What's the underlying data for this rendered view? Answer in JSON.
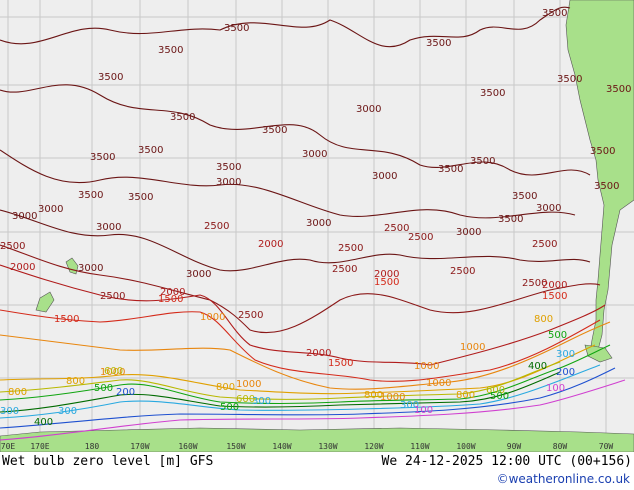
{
  "map": {
    "longitude_ticks": [
      "70E",
      "170E",
      "180",
      "170W",
      "160W",
      "150W",
      "140W",
      "130W",
      "120W",
      "110W",
      "100W",
      "90W",
      "80W",
      "70W"
    ],
    "contour_labels": {
      "c3500": "3500",
      "c3000": "3000",
      "c2500": "2500",
      "c2000": "2000",
      "c1500": "1500",
      "c1000": "1000",
      "c800": "800",
      "c600": "600",
      "c500": "500",
      "c400": "400",
      "c300": "300",
      "c200": "200",
      "c100": "100"
    },
    "colors": {
      "ocean": "#eeeeee",
      "land": "#a8e08a",
      "grid": "#c8c8c8",
      "c3500": "#6b1515",
      "c3000": "#6b1515",
      "c2500": "#8b1818",
      "c2000": "#b01c1c",
      "c1500": "#d42a1a",
      "c1000": "#e8860e",
      "c800": "#e0a000",
      "c600": "#b8b800",
      "c500": "#11a511",
      "c400": "#006b00",
      "c300": "#29a9e0",
      "c200": "#1e50d0",
      "c100": "#d040d0"
    }
  },
  "footer": {
    "title_left": "Wet bulb zero level [m] GFS",
    "title_right": "We 24-12-2025 12:00 UTC (00+156)",
    "credit": "©weatheronline.co.uk"
  }
}
